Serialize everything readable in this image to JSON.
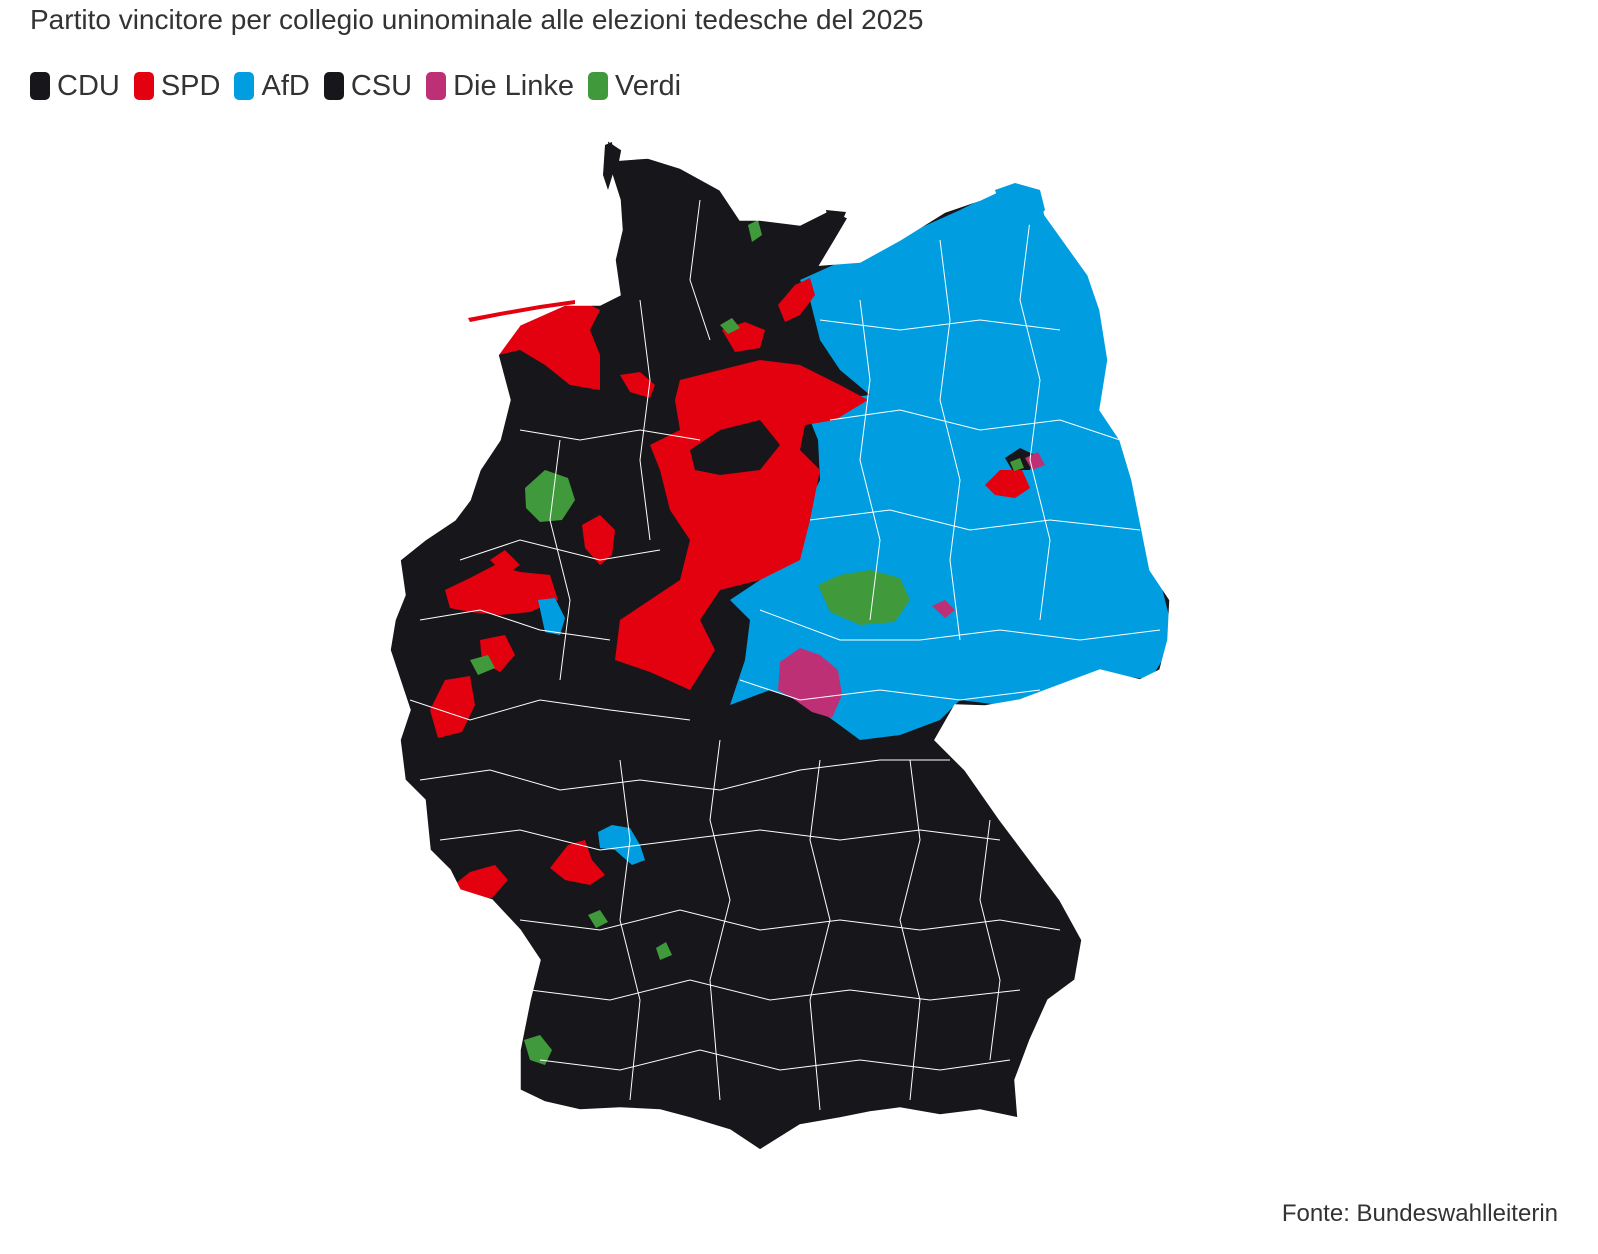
{
  "title": "Partito vincitore per collegio uninominale alle elezioni tedesche del 2025",
  "legend": [
    {
      "label": "CDU",
      "color": "#17171b"
    },
    {
      "label": "SPD",
      "color": "#e3000f"
    },
    {
      "label": "AfD",
      "color": "#009ee0"
    },
    {
      "label": "CSU",
      "color": "#17171b"
    },
    {
      "label": "Die Linke",
      "color": "#be3075"
    },
    {
      "label": "Verdi",
      "color": "#409a3c"
    }
  ],
  "map": {
    "region": "Germania",
    "party_colors": {
      "CDU": "#17171b",
      "SPD": "#e3000f",
      "AfD": "#009ee0",
      "CSU": "#17171b",
      "Die Linke": "#be3075",
      "Verdi": "#409a3c"
    },
    "boundary_color": "#ffffff"
  },
  "source": "Fonte: Bundeswahlleiterin"
}
